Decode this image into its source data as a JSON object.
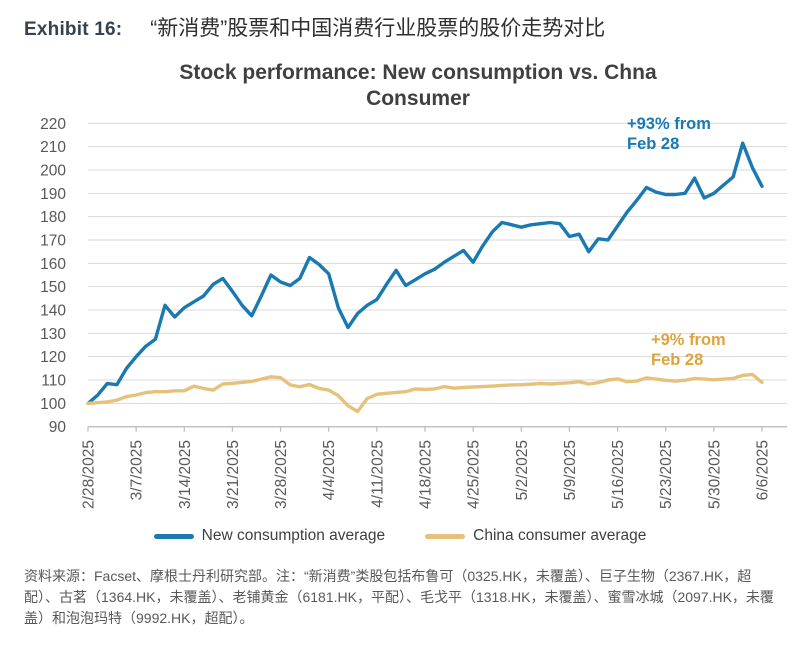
{
  "exhibit": {
    "label": "Exhibit 16:",
    "title_zh": "“新消费”股票和中国消费行业股票的股价走势对比"
  },
  "chart_data": {
    "type": "line",
    "title": "Stock performance: New consumption vs. Chna Consumer",
    "ylim": [
      90,
      220
    ],
    "y_tick_step": 10,
    "grid": "horizontal",
    "legend_position": "bottom",
    "x_tick_labels": [
      "2/28/2025",
      "3/7/2025",
      "3/14/2025",
      "3/21/2025",
      "3/28/2025",
      "4/4/2025",
      "4/11/2025",
      "4/18/2025",
      "4/25/2025",
      "5/2/2025",
      "5/9/2025",
      "5/16/2025",
      "5/23/2025",
      "5/30/2025",
      "6/6/2025"
    ],
    "dates": [
      "2/28",
      "3/3",
      "3/4",
      "3/5",
      "3/6",
      "3/7",
      "3/10",
      "3/11",
      "3/12",
      "3/13",
      "3/14",
      "3/17",
      "3/18",
      "3/19",
      "3/20",
      "3/21",
      "3/24",
      "3/25",
      "3/26",
      "3/27",
      "3/28",
      "3/31",
      "4/1",
      "4/2",
      "4/3",
      "4/4",
      "4/7",
      "4/8",
      "4/9",
      "4/10",
      "4/11",
      "4/14",
      "4/15",
      "4/16",
      "4/17",
      "4/18",
      "4/21",
      "4/22",
      "4/23",
      "4/24",
      "4/25",
      "4/28",
      "4/29",
      "4/30",
      "5/1",
      "5/2",
      "5/5",
      "5/6",
      "5/7",
      "5/8",
      "5/9",
      "5/12",
      "5/13",
      "5/14",
      "5/15",
      "5/16",
      "5/19",
      "5/20",
      "5/21",
      "5/22",
      "5/23",
      "5/26",
      "5/27",
      "5/28",
      "5/29",
      "5/30",
      "6/2",
      "6/3",
      "6/4",
      "6/5",
      "6/6"
    ],
    "series": [
      {
        "name": "New consumption average",
        "color": "#1b79b2",
        "values": [
          100,
          103.5,
          108.5,
          108,
          115,
          120,
          124.5,
          127.5,
          142,
          137,
          141,
          143.5,
          146,
          151,
          153.5,
          148,
          142,
          137.5,
          146,
          155,
          152,
          150.5,
          153.5,
          162.5,
          159.5,
          155.5,
          141,
          132.5,
          138.5,
          142,
          144.5,
          151,
          157,
          150.5,
          153,
          155.5,
          157.5,
          160.5,
          163,
          165.5,
          160.5,
          167.5,
          173.5,
          177.5,
          176.5,
          175.5,
          176.5,
          177,
          177.5,
          177,
          171.5,
          172.5,
          165,
          170.5,
          170,
          176,
          182,
          187,
          192.5,
          190.5,
          189.5,
          189.5,
          190,
          196.5,
          188,
          190,
          193.5,
          197,
          211.5,
          201,
          193
        ]
      },
      {
        "name": "China consumer average",
        "color": "#e5c17c",
        "values": [
          100,
          100.3,
          100.6,
          101.4,
          102.9,
          103.6,
          104.6,
          105,
          105,
          105.4,
          105.4,
          107.4,
          106.4,
          105.7,
          108.3,
          108.6,
          109,
          109.4,
          110.4,
          111.4,
          111,
          107.9,
          107.1,
          108.1,
          106.4,
          105.7,
          103.3,
          99,
          96.5,
          102.1,
          103.9,
          104.3,
          104.7,
          105,
          106.2,
          106,
          106.2,
          107.2,
          106.5,
          106.8,
          107,
          107.2,
          107.4,
          107.7,
          107.9,
          108,
          108.2,
          108.5,
          108.3,
          108.6,
          108.8,
          109.3,
          108.3,
          108.9,
          110,
          110.5,
          109.3,
          109.6,
          110.9,
          110.4,
          109.9,
          109.6,
          109.9,
          110.7,
          110.4,
          110.1,
          110.4,
          110.7,
          112,
          112.4,
          109
        ]
      }
    ],
    "annotations": [
      {
        "id": "new-consumption-change",
        "lines": [
          "+93% from",
          "Feb 28"
        ],
        "color": "#1779b5"
      },
      {
        "id": "china-consumer-change",
        "lines": [
          "+9% from",
          "Feb 28"
        ],
        "color": "#dfa33c"
      }
    ],
    "style": {
      "gridline_color": "#d9d9d9",
      "axis_color": "#bfbfbf",
      "tick_label_color": "#595959"
    }
  },
  "footer": {
    "note": "资料来源：Facset、摩根士丹利研究部。注：“新消费”类股包括布鲁可（0325.HK，未覆盖）、巨子生物（2367.HK，超配）、古茗（1364.HK，未覆盖）、老铺黄金（6181.HK，平配）、毛戈平（1318.HK，未覆盖）、蜜雪冰城（2097.HK，未覆盖）和泡泡玛特（9992.HK，超配）。"
  }
}
